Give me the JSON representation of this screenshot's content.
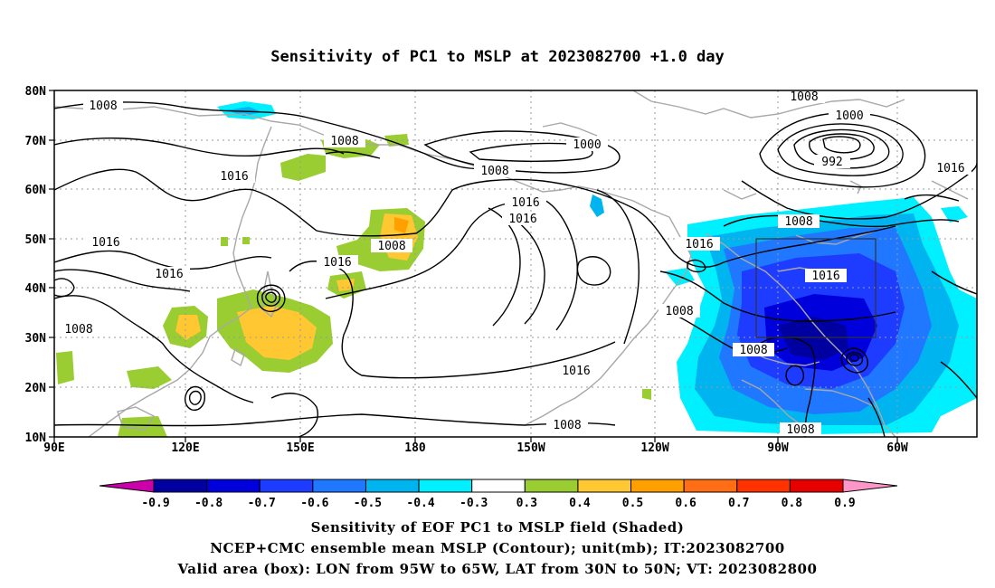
{
  "title": "Sensitivity of PC1 to MSLP at 2023082700 +1.0 day",
  "map": {
    "lon_labels": [
      "90E",
      "120E",
      "150E",
      "180",
      "150W",
      "120W",
      "90W",
      "60W"
    ],
    "lat_labels": [
      "80N",
      "70N",
      "60N",
      "50N",
      "40N",
      "30N",
      "20N",
      "10N"
    ],
    "contour_labels": [
      "1008",
      "1008",
      "1016",
      "1008",
      "1000",
      "1008",
      "1016",
      "1016",
      "1008",
      "1000",
      "992",
      "1016",
      "1016",
      "1008",
      "1016",
      "1016",
      "1008",
      "1016",
      "1008",
      "1016",
      "1008",
      "1008"
    ],
    "valid_box": {
      "lon_min_w": 95,
      "lon_max_w": 65,
      "lat_min_n": 30,
      "lat_max_n": 50
    },
    "colors": {
      "land_outline": "#a8a8a8",
      "contour": "#000000",
      "grid": "#9a9a9a"
    }
  },
  "colorbar": {
    "labels": [
      "-0.9",
      "-0.8",
      "-0.7",
      "-0.6",
      "-0.5",
      "-0.4",
      "-0.3",
      "0.3",
      "0.4",
      "0.5",
      "0.6",
      "0.7",
      "0.8",
      "0.9"
    ],
    "colors": [
      "#cc00aa",
      "#0000a0",
      "#0000dc",
      "#1e3cff",
      "#1f78ff",
      "#00b4f0",
      "#00f0ff",
      "#ffffff",
      "#9acd32",
      "#ffc832",
      "#ffa000",
      "#ff6e14",
      "#ff3200",
      "#e60000",
      "#ff96c8"
    ]
  },
  "captions": {
    "line1": "Sensitivity of EOF PC1 to MSLP field (Shaded)",
    "line2": "NCEP+CMC ensemble mean MSLP (Contour); unit(mb); IT:2023082700",
    "line3": "Valid area (box): LON from 95W to 65W, LAT from 30N to 50N; VT: 2023082800"
  }
}
